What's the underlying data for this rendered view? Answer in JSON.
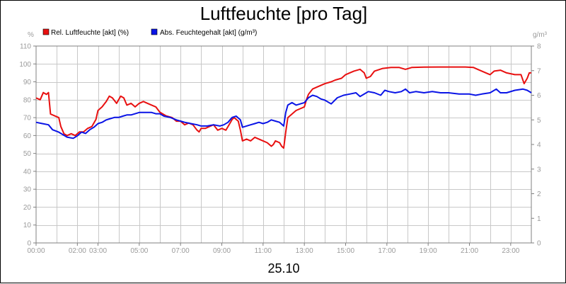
{
  "chart_data": {
    "type": "line",
    "title": "Luftfeuchte [pro Tag]",
    "date_label": "25.10",
    "y_unit_left": "%",
    "y_unit_right": "g/m³",
    "ylim_left": [
      0,
      110
    ],
    "ylim_right": [
      0,
      8
    ],
    "y_ticks_left": [
      0,
      10,
      20,
      30,
      40,
      50,
      60,
      70,
      80,
      90,
      100,
      110
    ],
    "y_ticks_right": [
      0,
      1,
      2,
      3,
      4,
      5,
      6,
      7,
      8
    ],
    "xlim_hours": [
      0,
      24
    ],
    "x_ticks": [
      {
        "h": 0,
        "label": "00:00"
      },
      {
        "h": 2,
        "label": "02:00"
      },
      {
        "h": 3,
        "label": "03:00"
      },
      {
        "h": 5,
        "label": "05:00"
      },
      {
        "h": 7,
        "label": "07:00"
      },
      {
        "h": 9,
        "label": "09:00"
      },
      {
        "h": 11,
        "label": "11:00"
      },
      {
        "h": 13,
        "label": "13:00"
      },
      {
        "h": 15,
        "label": "15:00"
      },
      {
        "h": 17,
        "label": "17:00"
      },
      {
        "h": 19,
        "label": "19:00"
      },
      {
        "h": 21,
        "label": "21:00"
      },
      {
        "h": 23,
        "label": "23:00"
      }
    ],
    "grid": true,
    "legend_position": "top-left",
    "series": [
      {
        "name": "Rel. Luftfeuchte [akt] (%)",
        "color": "#e81010",
        "axis": "left",
        "points": [
          [
            0,
            81
          ],
          [
            0.2,
            80
          ],
          [
            0.35,
            84
          ],
          [
            0.5,
            83
          ],
          [
            0.6,
            84
          ],
          [
            0.7,
            72
          ],
          [
            0.9,
            71
          ],
          [
            1.1,
            70
          ],
          [
            1.2,
            65
          ],
          [
            1.35,
            61
          ],
          [
            1.5,
            60
          ],
          [
            1.7,
            61
          ],
          [
            1.9,
            60
          ],
          [
            2.1,
            62
          ],
          [
            2.3,
            62
          ],
          [
            2.5,
            64
          ],
          [
            2.7,
            65
          ],
          [
            2.9,
            69
          ],
          [
            3.0,
            74
          ],
          [
            3.2,
            76
          ],
          [
            3.4,
            79
          ],
          [
            3.55,
            82
          ],
          [
            3.7,
            81
          ],
          [
            3.9,
            78
          ],
          [
            4.1,
            82
          ],
          [
            4.25,
            81
          ],
          [
            4.4,
            77
          ],
          [
            4.6,
            78
          ],
          [
            4.8,
            76
          ],
          [
            5.0,
            78
          ],
          [
            5.2,
            79
          ],
          [
            5.4,
            78
          ],
          [
            5.6,
            77
          ],
          [
            5.8,
            76
          ],
          [
            6.0,
            73
          ],
          [
            6.3,
            71
          ],
          [
            6.6,
            70
          ],
          [
            6.8,
            68
          ],
          [
            7.0,
            68
          ],
          [
            7.2,
            66
          ],
          [
            7.4,
            67
          ],
          [
            7.6,
            66
          ],
          [
            7.8,
            63
          ],
          [
            7.9,
            62
          ],
          [
            8.0,
            64
          ],
          [
            8.2,
            64
          ],
          [
            8.4,
            65
          ],
          [
            8.6,
            66
          ],
          [
            8.8,
            63
          ],
          [
            9.0,
            64
          ],
          [
            9.2,
            63
          ],
          [
            9.4,
            67
          ],
          [
            9.5,
            69
          ],
          [
            9.6,
            70
          ],
          [
            9.8,
            68
          ],
          [
            9.9,
            63
          ],
          [
            10.0,
            57
          ],
          [
            10.2,
            58
          ],
          [
            10.4,
            57
          ],
          [
            10.6,
            59
          ],
          [
            10.8,
            58
          ],
          [
            11.0,
            57
          ],
          [
            11.2,
            56
          ],
          [
            11.4,
            54
          ],
          [
            11.5,
            55
          ],
          [
            11.6,
            57
          ],
          [
            11.8,
            56
          ],
          [
            11.9,
            54
          ],
          [
            12.0,
            53
          ],
          [
            12.1,
            62
          ],
          [
            12.2,
            70
          ],
          [
            12.4,
            72
          ],
          [
            12.6,
            74
          ],
          [
            12.8,
            75
          ],
          [
            13.0,
            76
          ],
          [
            13.1,
            80
          ],
          [
            13.2,
            83
          ],
          [
            13.4,
            86
          ],
          [
            13.6,
            87
          ],
          [
            13.8,
            88
          ],
          [
            14.0,
            89
          ],
          [
            14.3,
            90
          ],
          [
            14.5,
            91
          ],
          [
            14.8,
            92
          ],
          [
            15.0,
            94
          ],
          [
            15.2,
            95
          ],
          [
            15.4,
            96
          ],
          [
            15.7,
            97
          ],
          [
            15.9,
            95
          ],
          [
            16.0,
            92
          ],
          [
            16.2,
            93
          ],
          [
            16.4,
            96
          ],
          [
            16.8,
            97.5
          ],
          [
            17.2,
            98
          ],
          [
            17.6,
            98
          ],
          [
            17.9,
            97
          ],
          [
            18.2,
            98
          ],
          [
            18.8,
            98.2
          ],
          [
            19.5,
            98.3
          ],
          [
            20.2,
            98.3
          ],
          [
            20.8,
            98.3
          ],
          [
            21.2,
            98
          ],
          [
            21.4,
            97
          ],
          [
            21.6,
            96
          ],
          [
            21.8,
            95
          ],
          [
            22.0,
            94
          ],
          [
            22.2,
            96
          ],
          [
            22.5,
            96.5
          ],
          [
            22.8,
            95
          ],
          [
            23.2,
            94
          ],
          [
            23.5,
            94
          ],
          [
            23.65,
            89
          ],
          [
            23.8,
            92
          ],
          [
            23.9,
            95
          ],
          [
            24.0,
            95
          ]
        ]
      },
      {
        "name": "Abs. Feuchtegehalt [akt] (g/m³)",
        "color": "#0a14e6",
        "axis": "right",
        "points": [
          [
            0,
            4.9
          ],
          [
            0.3,
            4.85
          ],
          [
            0.6,
            4.8
          ],
          [
            0.8,
            4.6
          ],
          [
            1.1,
            4.5
          ],
          [
            1.3,
            4.4
          ],
          [
            1.5,
            4.3
          ],
          [
            1.8,
            4.25
          ],
          [
            2.0,
            4.35
          ],
          [
            2.2,
            4.5
          ],
          [
            2.4,
            4.45
          ],
          [
            2.6,
            4.6
          ],
          [
            2.8,
            4.7
          ],
          [
            3.0,
            4.85
          ],
          [
            3.2,
            4.9
          ],
          [
            3.4,
            5.0
          ],
          [
            3.6,
            5.05
          ],
          [
            3.8,
            5.1
          ],
          [
            4.0,
            5.1
          ],
          [
            4.2,
            5.15
          ],
          [
            4.4,
            5.2
          ],
          [
            4.6,
            5.2
          ],
          [
            4.8,
            5.25
          ],
          [
            5.0,
            5.3
          ],
          [
            5.3,
            5.3
          ],
          [
            5.6,
            5.3
          ],
          [
            5.8,
            5.25
          ],
          [
            6.0,
            5.25
          ],
          [
            6.2,
            5.15
          ],
          [
            6.5,
            5.1
          ],
          [
            6.8,
            5.0
          ],
          [
            7.0,
            4.95
          ],
          [
            7.2,
            4.9
          ],
          [
            7.5,
            4.85
          ],
          [
            7.8,
            4.8
          ],
          [
            8.0,
            4.75
          ],
          [
            8.3,
            4.75
          ],
          [
            8.6,
            4.8
          ],
          [
            8.9,
            4.75
          ],
          [
            9.1,
            4.8
          ],
          [
            9.3,
            4.9
          ],
          [
            9.5,
            5.1
          ],
          [
            9.7,
            5.15
          ],
          [
            9.9,
            5.0
          ],
          [
            10.0,
            4.7
          ],
          [
            10.2,
            4.75
          ],
          [
            10.4,
            4.8
          ],
          [
            10.6,
            4.85
          ],
          [
            10.8,
            4.9
          ],
          [
            11.0,
            4.85
          ],
          [
            11.2,
            4.9
          ],
          [
            11.4,
            5.0
          ],
          [
            11.6,
            4.95
          ],
          [
            11.8,
            4.9
          ],
          [
            12.0,
            4.75
          ],
          [
            12.1,
            5.3
          ],
          [
            12.2,
            5.6
          ],
          [
            12.4,
            5.7
          ],
          [
            12.6,
            5.6
          ],
          [
            12.8,
            5.65
          ],
          [
            13.0,
            5.7
          ],
          [
            13.2,
            5.9
          ],
          [
            13.4,
            6.0
          ],
          [
            13.6,
            5.95
          ],
          [
            13.8,
            5.85
          ],
          [
            14.0,
            5.8
          ],
          [
            14.3,
            5.65
          ],
          [
            14.6,
            5.9
          ],
          [
            14.9,
            6.0
          ],
          [
            15.2,
            6.05
          ],
          [
            15.5,
            6.1
          ],
          [
            15.7,
            5.95
          ],
          [
            15.9,
            6.05
          ],
          [
            16.1,
            6.15
          ],
          [
            16.4,
            6.1
          ],
          [
            16.7,
            6.0
          ],
          [
            16.9,
            6.2
          ],
          [
            17.1,
            6.15
          ],
          [
            17.4,
            6.1
          ],
          [
            17.7,
            6.15
          ],
          [
            17.9,
            6.25
          ],
          [
            18.1,
            6.1
          ],
          [
            18.4,
            6.15
          ],
          [
            18.8,
            6.1
          ],
          [
            19.2,
            6.15
          ],
          [
            19.6,
            6.1
          ],
          [
            20.0,
            6.1
          ],
          [
            20.5,
            6.05
          ],
          [
            21.0,
            6.05
          ],
          [
            21.3,
            6.0
          ],
          [
            21.6,
            6.05
          ],
          [
            22.0,
            6.1
          ],
          [
            22.3,
            6.25
          ],
          [
            22.5,
            6.1
          ],
          [
            22.8,
            6.1
          ],
          [
            23.2,
            6.2
          ],
          [
            23.6,
            6.25
          ],
          [
            23.8,
            6.2
          ],
          [
            24.0,
            6.1
          ]
        ]
      }
    ]
  }
}
